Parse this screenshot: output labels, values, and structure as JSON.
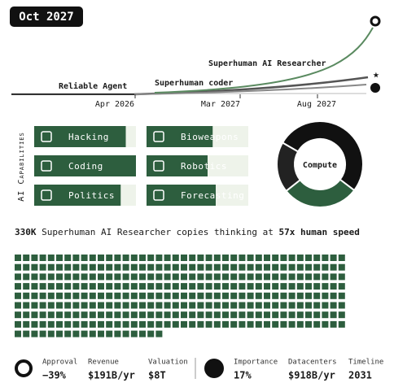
{
  "date": "Oct 2027",
  "timeline": {
    "labels": [
      "Superhuman AI Researcher",
      "Reliable Agent",
      "Superhuman coder"
    ],
    "xticks": [
      "Apr 2026",
      "Mar 2027",
      "Aug 2027"
    ]
  },
  "capabilities": {
    "title": "AI Capabilities",
    "items": [
      {
        "name": "Hacking",
        "level": 0.9
      },
      {
        "name": "Coding",
        "level": 1.0
      },
      {
        "name": "Politics",
        "level": 0.85
      },
      {
        "name": "Bioweapons",
        "level": 0.65
      },
      {
        "name": "Robotics",
        "level": 0.6
      },
      {
        "name": "Forecasting",
        "level": 0.68
      }
    ]
  },
  "compute": {
    "label": "Compute",
    "shares": [
      52,
      29,
      19
    ]
  },
  "headline": [
    "330K",
    " Superhuman AI Researcher copies thinking at ",
    "57x human speed"
  ],
  "stats": [
    {
      "label": "Approval",
      "value": "−39%"
    },
    {
      "label": "Revenue",
      "value": "$191B/yr"
    },
    {
      "label": "Valuation",
      "value": "$8T"
    },
    {
      "label": "Importance",
      "value": "17%"
    },
    {
      "label": "Datacenters",
      "value": "$918B/yr"
    },
    {
      "label": "Timeline",
      "value": "2031"
    }
  ]
}
